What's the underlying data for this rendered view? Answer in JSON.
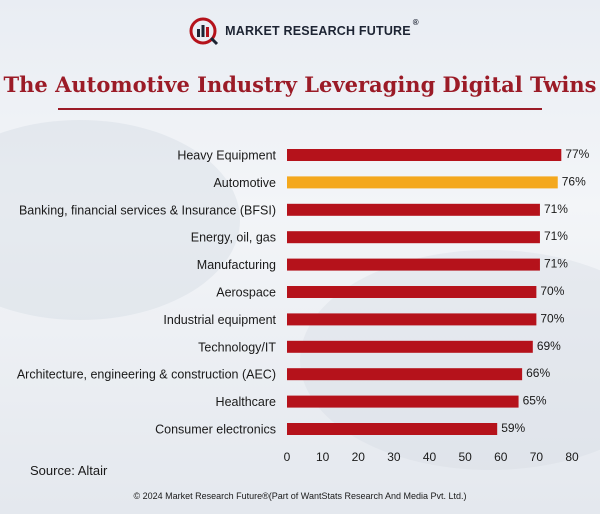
{
  "brand": {
    "name": "MARKET RESEARCH FUTURE",
    "reg": "®"
  },
  "colors": {
    "bar": "#b5121b",
    "highlight": "#f4a81d",
    "title": "#9b1b27"
  },
  "chart_data": {
    "type": "bar",
    "orientation": "horizontal",
    "title": "The Automotive Industry Leveraging Digital Twins",
    "categories": [
      "Heavy Equipment",
      "Automotive",
      "Banking, financial services & Insurance (BFSI)",
      "Energy, oil, gas",
      "Manufacturing",
      "Aerospace",
      "Industrial equipment",
      "Technology/IT",
      "Architecture, engineering & construction (AEC)",
      "Healthcare",
      "Consumer electronics"
    ],
    "values": [
      77,
      76,
      71,
      71,
      71,
      70,
      70,
      69,
      66,
      65,
      59
    ],
    "value_labels": [
      "77%",
      "76%",
      "71%",
      "71%",
      "71%",
      "70%",
      "70%",
      "69%",
      "66%",
      "65%",
      "59%"
    ],
    "highlight_category": "Automotive",
    "xlim": [
      0,
      80
    ],
    "xticks": [
      "0",
      "10",
      "20",
      "30",
      "40",
      "50",
      "60",
      "70",
      "80"
    ],
    "xlabel": "",
    "ylabel": "",
    "grid": false
  },
  "source": "Source: Altair",
  "copyright": "© 2024 Market Research Future®(Part of WantStats Research And Media Pvt. Ltd.)"
}
